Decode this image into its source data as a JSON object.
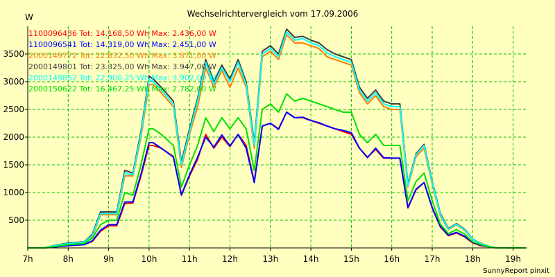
{
  "chart_data": {
    "type": "line",
    "title": "Wechselrichtervergleich vom 17.09.2006",
    "ylabel": "W",
    "xlabel": "",
    "footer": "SunnyReport pinxit",
    "x_range": [
      7,
      19.35
    ],
    "ylim": [
      0,
      4000
    ],
    "x_ticks": [
      {
        "value": 7,
        "label": "7h"
      },
      {
        "value": 8,
        "label": "8h"
      },
      {
        "value": 9,
        "label": "9h"
      },
      {
        "value": 10,
        "label": "10h"
      },
      {
        "value": 11,
        "label": "11h"
      },
      {
        "value": 12,
        "label": "12h"
      },
      {
        "value": 13,
        "label": "13h"
      },
      {
        "value": 14,
        "label": "14h"
      },
      {
        "value": 15,
        "label": "15h"
      },
      {
        "value": 16,
        "label": "16h"
      },
      {
        "value": 17,
        "label": "17h"
      },
      {
        "value": 18,
        "label": "18h"
      },
      {
        "value": 19,
        "label": "19h"
      }
    ],
    "y_ticks": [
      500,
      1000,
      1500,
      2000,
      2500,
      3000,
      3500
    ],
    "grid": true,
    "background": "#ffffc0",
    "grid_color": "#00c000",
    "x": [
      7.0,
      7.4,
      7.7,
      8.0,
      8.2,
      8.4,
      8.6,
      8.8,
      9.0,
      9.2,
      9.4,
      9.6,
      9.8,
      10.0,
      10.1,
      10.3,
      10.6,
      10.8,
      11.0,
      11.2,
      11.4,
      11.6,
      11.8,
      12.0,
      12.2,
      12.4,
      12.6,
      12.8,
      13.0,
      13.2,
      13.4,
      13.6,
      13.8,
      14.0,
      14.2,
      14.4,
      14.6,
      14.8,
      15.0,
      15.2,
      15.4,
      15.6,
      15.8,
      16.0,
      16.2,
      16.4,
      16.6,
      16.8,
      17.0,
      17.2,
      17.4,
      17.6,
      17.8,
      18.0,
      18.2,
      18.4,
      18.6,
      18.8,
      19.0,
      19.3
    ],
    "series": [
      {
        "name": "1100096436",
        "legend": "1100096436 Tot: 14.168,50 Wh Max: 2.436,00 W",
        "color": "#ff0000",
        "values": [
          0,
          0,
          20,
          40,
          50,
          60,
          120,
          300,
          400,
          400,
          800,
          810,
          1300,
          1850,
          1850,
          1800,
          1650,
          950,
          1300,
          1600,
          2050,
          1800,
          2000,
          1830,
          2050,
          1850,
          1200,
          2200,
          2250,
          2150,
          2450,
          2350,
          2350,
          2300,
          2250,
          2200,
          2150,
          2100,
          2050,
          1800,
          1640,
          1780,
          1620,
          1620,
          1620,
          720,
          1050,
          1180,
          720,
          380,
          220,
          270,
          200,
          90,
          40,
          20,
          0,
          0,
          0,
          0
        ]
      },
      {
        "name": "1100096541",
        "legend": "1100096541 Tot: 14.319,00 Wh Max: 2.451,00 W",
        "color": "#0000ff",
        "values": [
          0,
          0,
          20,
          40,
          50,
          60,
          130,
          320,
          420,
          420,
          830,
          830,
          1330,
          1900,
          1900,
          1800,
          1640,
          960,
          1320,
          1640,
          2000,
          1820,
          2040,
          1840,
          2050,
          1800,
          1180,
          2200,
          2250,
          2140,
          2450,
          2350,
          2360,
          2300,
          2260,
          2200,
          2150,
          2120,
          2080,
          1800,
          1630,
          1800,
          1630,
          1620,
          1620,
          730,
          1060,
          1180,
          730,
          390,
          230,
          280,
          210,
          100,
          50,
          20,
          0,
          0,
          0,
          0
        ]
      },
      {
        "name": "2000149772",
        "legend": "2000149772 Tot: 22.632,50 Wh Max: 3.871,00 W",
        "color": "#ff8000",
        "values": [
          0,
          0,
          40,
          70,
          80,
          90,
          200,
          600,
          600,
          600,
          1300,
          1300,
          2000,
          2950,
          2950,
          2800,
          2550,
          1450,
          2050,
          2550,
          3250,
          2900,
          3200,
          2900,
          3250,
          2900,
          1800,
          3450,
          3550,
          3400,
          3850,
          3700,
          3700,
          3650,
          3600,
          3450,
          3400,
          3350,
          3300,
          2800,
          2600,
          2750,
          2550,
          2500,
          2500,
          1100,
          1650,
          1800,
          1150,
          580,
          330,
          420,
          320,
          150,
          70,
          30,
          0,
          0,
          0,
          0
        ]
      },
      {
        "name": "2000149801",
        "legend": "2000149801 Tot: 23.325,00 Wh Max: 3.947,00 W",
        "color": "#404040",
        "values": [
          0,
          0,
          50,
          90,
          100,
          110,
          250,
          650,
          650,
          650,
          1400,
          1350,
          2100,
          3100,
          3050,
          2900,
          2650,
          1550,
          2150,
          2700,
          3400,
          3000,
          3300,
          3050,
          3400,
          3000,
          1900,
          3550,
          3650,
          3500,
          3950,
          3800,
          3820,
          3750,
          3700,
          3580,
          3500,
          3450,
          3400,
          2900,
          2700,
          2850,
          2650,
          2600,
          2600,
          1150,
          1700,
          1870,
          1200,
          620,
          350,
          440,
          340,
          160,
          80,
          30,
          0,
          0,
          0,
          0
        ]
      },
      {
        "name": "2000149852",
        "legend": "2000149852 Tot: 22.900,25 Wh Max: 3.902,00 W",
        "color": "#00ffff",
        "values": [
          0,
          0,
          45,
          80,
          90,
          100,
          230,
          620,
          620,
          620,
          1350,
          1320,
          2050,
          3050,
          3000,
          2850,
          2600,
          1500,
          2100,
          2650,
          3350,
          2950,
          3250,
          3000,
          3350,
          2950,
          1850,
          3500,
          3600,
          3450,
          3900,
          3750,
          3780,
          3700,
          3650,
          3520,
          3450,
          3400,
          3350,
          2850,
          2650,
          2800,
          2600,
          2550,
          2550,
          1120,
          1680,
          1850,
          1180,
          600,
          340,
          430,
          330,
          155,
          75,
          30,
          0,
          0,
          0,
          0
        ]
      },
      {
        "name": "2000150622",
        "legend": "2000150622 Tot: 16.467,25 Wh Max: 2.782,00 W",
        "color": "#00e000",
        "values": [
          0,
          0,
          30,
          60,
          70,
          80,
          180,
          420,
          500,
          500,
          1000,
          950,
          1500,
          2150,
          2150,
          2050,
          1850,
          1100,
          1500,
          1850,
          2350,
          2100,
          2350,
          2150,
          2350,
          2150,
          1400,
          2500,
          2600,
          2450,
          2780,
          2650,
          2700,
          2650,
          2600,
          2550,
          2500,
          2450,
          2450,
          2050,
          1900,
          2050,
          1850,
          1850,
          1850,
          850,
          1200,
          1350,
          850,
          430,
          260,
          330,
          250,
          110,
          60,
          20,
          0,
          0,
          0,
          0
        ]
      }
    ]
  }
}
